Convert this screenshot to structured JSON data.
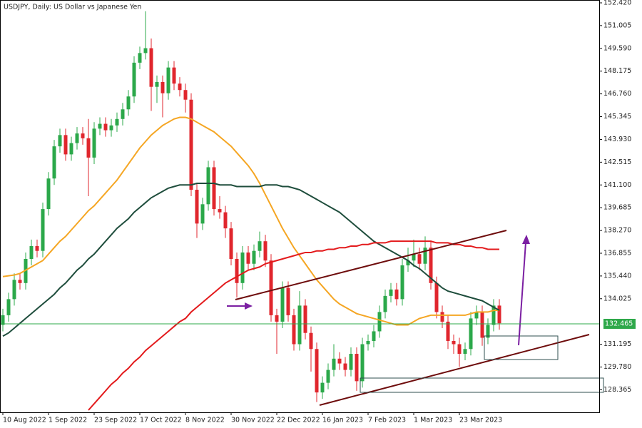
{
  "chart_data": {
    "type": "candlestick",
    "title": "USDJPY, Daily:  US Dollar vs Japanese Yen",
    "categories": [
      "10 Aug 2022",
      null,
      null,
      null,
      null,
      null,
      null,
      null,
      "1 Sep 2022",
      null,
      null,
      null,
      null,
      null,
      null,
      null,
      "23 Sep 2022",
      null,
      null,
      null,
      null,
      null,
      null,
      null,
      "17 Oct 2022",
      null,
      null,
      null,
      null,
      null,
      null,
      null,
      "8 Nov 2022",
      null,
      null,
      null,
      null,
      null,
      null,
      null,
      "30 Nov 2022",
      null,
      null,
      null,
      null,
      null,
      null,
      null,
      "22 Dec 2022",
      null,
      null,
      null,
      null,
      null,
      null,
      null,
      "16 Jan 2023",
      null,
      null,
      null,
      null,
      null,
      null,
      null,
      "7 Feb 2023",
      null,
      null,
      null,
      null,
      null,
      null,
      null,
      "1 Mar 2023",
      null,
      null,
      null,
      null,
      null,
      null,
      null,
      "23 Mar 2023",
      null,
      null,
      null,
      null,
      null,
      null,
      null
    ],
    "open": [
      132.4,
      133.0,
      134.0,
      135.2,
      135.0,
      136.5,
      137.3,
      137.0,
      139.6,
      141.5,
      143.5,
      144.2,
      143.0,
      143.7,
      144.3,
      144.0,
      142.8,
      144.6,
      144.9,
      144.5,
      144.8,
      145.2,
      145.8,
      146.6,
      148.7,
      149.3,
      149.6,
      147.2,
      147.5,
      146.8,
      148.4,
      147.4,
      147.0,
      146.4,
      140.8,
      138.7,
      139.9,
      142.2,
      139.6,
      139.4,
      138.4,
      136.5,
      135.0,
      136.9,
      136.2,
      137.0,
      137.6,
      136.4,
      133.0,
      132.6,
      134.7,
      133.0,
      131.2,
      133.6,
      131.9,
      130.9,
      128.2,
      128.8,
      129.6,
      130.3,
      130.0,
      129.6,
      130.6,
      128.9,
      131.2,
      131.4,
      132.0,
      133.2,
      134.2,
      134.6,
      134.0,
      136.1,
      136.4,
      136.8,
      136.2,
      137.2,
      135.0,
      133.2,
      132.6,
      131.4,
      131.2,
      130.6,
      130.9,
      132.8,
      133.2,
      131.6,
      132.4,
      133.6
    ],
    "high": [
      133.4,
      134.4,
      135.6,
      135.6,
      136.9,
      137.7,
      137.7,
      140.0,
      141.9,
      143.9,
      144.6,
      144.6,
      144.1,
      144.7,
      144.7,
      145.2,
      145.0,
      145.3,
      145.3,
      145.2,
      145.6,
      146.2,
      147.0,
      149.1,
      149.7,
      151.9,
      150.2,
      147.9,
      147.9,
      148.8,
      148.8,
      147.8,
      147.4,
      146.8,
      141.2,
      140.3,
      142.6,
      142.6,
      140.4,
      139.8,
      138.8,
      136.9,
      137.3,
      137.3,
      137.4,
      138.2,
      138.0,
      136.8,
      133.4,
      135.1,
      135.1,
      133.4,
      134.5,
      134.0,
      132.3,
      131.3,
      129.2,
      130.0,
      131.2,
      130.7,
      130.4,
      131.0,
      131.0,
      131.6,
      131.8,
      132.4,
      133.6,
      134.6,
      135.0,
      135.0,
      136.5,
      137.2,
      137.7,
      137.2,
      137.9,
      137.6,
      135.4,
      133.6,
      133.0,
      131.8,
      131.6,
      131.3,
      133.2,
      133.6,
      133.6,
      132.8,
      134.0,
      134.0
    ],
    "low": [
      132.0,
      132.6,
      133.6,
      134.6,
      134.6,
      136.1,
      136.6,
      136.6,
      139.2,
      141.1,
      143.1,
      142.6,
      142.6,
      143.3,
      143.6,
      140.4,
      142.4,
      144.2,
      144.1,
      144.1,
      144.4,
      144.8,
      145.4,
      146.2,
      148.3,
      148.9,
      145.7,
      146.2,
      145.3,
      146.4,
      147.0,
      146.6,
      145.6,
      140.4,
      137.8,
      138.3,
      139.5,
      139.2,
      139.0,
      137.8,
      136.1,
      134.1,
      134.6,
      135.8,
      135.8,
      136.6,
      136.0,
      132.6,
      130.6,
      132.2,
      132.6,
      130.8,
      130.8,
      131.5,
      129.5,
      127.6,
      127.8,
      128.4,
      129.2,
      129.6,
      129.2,
      129.2,
      128.3,
      128.5,
      130.8,
      131.0,
      131.6,
      132.8,
      133.8,
      133.6,
      133.6,
      135.7,
      136.0,
      135.8,
      135.8,
      134.6,
      132.8,
      132.2,
      130.9,
      130.6,
      129.8,
      130.2,
      130.5,
      132.4,
      131.1,
      131.2,
      132.0,
      132.1
    ],
    "close": [
      133.0,
      134.0,
      135.2,
      135.0,
      136.5,
      137.3,
      137.0,
      139.6,
      141.5,
      143.5,
      144.2,
      143.0,
      143.7,
      144.3,
      144.0,
      142.8,
      144.6,
      144.9,
      144.5,
      144.8,
      145.2,
      145.8,
      146.6,
      148.7,
      149.3,
      149.6,
      147.2,
      147.5,
      146.8,
      148.4,
      147.4,
      147.0,
      146.4,
      140.8,
      138.7,
      139.9,
      142.2,
      139.6,
      139.4,
      138.4,
      136.5,
      135.0,
      136.9,
      136.2,
      137.0,
      137.6,
      136.4,
      133.0,
      132.6,
      134.7,
      133.0,
      131.2,
      133.6,
      131.9,
      130.9,
      128.2,
      128.8,
      129.6,
      130.3,
      130.0,
      129.6,
      130.6,
      128.9,
      131.2,
      131.4,
      132.0,
      133.2,
      134.2,
      134.6,
      134.0,
      136.1,
      136.4,
      136.8,
      136.2,
      137.2,
      135.0,
      133.2,
      132.6,
      131.4,
      131.2,
      130.6,
      130.9,
      132.8,
      133.2,
      131.6,
      132.4,
      133.6,
      132.5
    ],
    "up_color": "#2ba84a",
    "down_color": "#e0262d",
    "series": [
      {
        "color": "#f5a623",
        "values": [
          135.4,
          135.45,
          135.5,
          135.6,
          135.8,
          136.0,
          136.2,
          136.4,
          136.8,
          137.2,
          137.6,
          137.9,
          138.3,
          138.7,
          139.1,
          139.5,
          139.8,
          140.2,
          140.6,
          141.0,
          141.4,
          141.9,
          142.4,
          142.9,
          143.4,
          143.8,
          144.2,
          144.5,
          144.8,
          145.0,
          145.2,
          145.3,
          145.3,
          145.2,
          145.0,
          144.8,
          144.6,
          144.4,
          144.1,
          143.8,
          143.5,
          143.1,
          142.7,
          142.3,
          141.8,
          141.2,
          140.5,
          139.8,
          139.1,
          138.4,
          137.8,
          137.2,
          136.7,
          136.2,
          135.7,
          135.2,
          134.8,
          134.4,
          134.0,
          133.7,
          133.5,
          133.3,
          133.1,
          133.0,
          132.9,
          132.8,
          132.7,
          132.6,
          132.5,
          132.4,
          132.4,
          132.4,
          132.6,
          132.8,
          132.9,
          133.0,
          133.0,
          133.0,
          133.0,
          133.0,
          133.0,
          133.0,
          133.1,
          133.2,
          133.2,
          133.2,
          133.3,
          133.3
        ]
      },
      {
        "color": "#1e4d3c",
        "values": [
          131.7,
          131.9,
          132.2,
          132.5,
          132.8,
          133.1,
          133.4,
          133.7,
          134.0,
          134.3,
          134.7,
          135.0,
          135.4,
          135.8,
          136.1,
          136.5,
          136.8,
          137.2,
          137.6,
          138.0,
          138.4,
          138.7,
          139.0,
          139.4,
          139.7,
          140.0,
          140.3,
          140.5,
          140.7,
          140.9,
          141.0,
          141.1,
          141.1,
          141.1,
          141.2,
          141.2,
          141.2,
          141.2,
          141.1,
          141.1,
          141.1,
          141.0,
          141.0,
          141.0,
          141.0,
          141.0,
          141.1,
          141.1,
          141.1,
          141.0,
          141.0,
          140.9,
          140.8,
          140.6,
          140.4,
          140.2,
          140.0,
          139.8,
          139.6,
          139.4,
          139.1,
          138.8,
          138.5,
          138.2,
          137.9,
          137.6,
          137.4,
          137.2,
          137.0,
          136.8,
          136.6,
          136.4,
          136.1,
          135.9,
          135.6,
          135.3,
          135.0,
          134.7,
          134.5,
          134.4,
          134.3,
          134.2,
          134.1,
          134.0,
          133.9,
          133.7,
          133.5,
          133.3
        ]
      },
      {
        "color": "#e31a1c",
        "values": [
          null,
          null,
          null,
          null,
          null,
          null,
          null,
          null,
          null,
          null,
          null,
          null,
          null,
          null,
          null,
          127.1,
          127.5,
          127.9,
          128.3,
          128.7,
          129.0,
          129.4,
          129.7,
          130.1,
          130.4,
          130.8,
          131.1,
          131.4,
          131.7,
          132.0,
          132.3,
          132.6,
          132.8,
          133.2,
          133.5,
          133.8,
          134.1,
          134.4,
          134.7,
          135.0,
          135.2,
          135.4,
          135.6,
          135.8,
          135.9,
          136.0,
          136.2,
          136.3,
          136.4,
          136.5,
          136.6,
          136.7,
          136.8,
          136.9,
          136.9,
          137.0,
          137.0,
          137.1,
          137.1,
          137.2,
          137.2,
          137.3,
          137.3,
          137.4,
          137.4,
          137.5,
          137.5,
          137.5,
          137.6,
          137.6,
          137.6,
          137.6,
          137.6,
          137.6,
          137.6,
          137.6,
          137.5,
          137.5,
          137.5,
          137.4,
          137.4,
          137.3,
          137.3,
          137.2,
          137.2,
          137.1,
          137.1,
          137.1
        ]
      }
    ],
    "current_price": 132.465,
    "current_price_color": "#2ea84a",
    "ylim": [
      126.965,
      152.597
    ],
    "yticks": [
      {
        "value": 152.42,
        "label": "152.420"
      },
      151.005,
      {
        "value": 149.59,
        "label": "149.590"
      },
      148.175,
      {
        "value": 146.76,
        "label": "146.760"
      },
      145.345,
      {
        "value": 143.93,
        "label": "143.930"
      },
      142.515,
      {
        "value": 141.1,
        "label": "141.100"
      },
      139.685,
      {
        "value": 138.27,
        "label": "138.270"
      },
      136.855,
      {
        "value": 135.44,
        "label": "135.440"
      },
      134.025,
      131.195,
      {
        "value": 129.78,
        "label": "129.780"
      },
      128.365
    ]
  }
}
